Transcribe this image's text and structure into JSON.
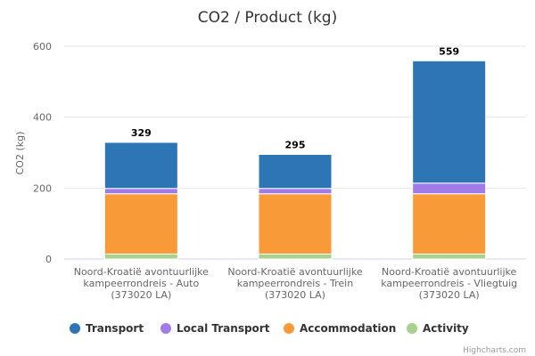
{
  "chart_data": {
    "type": "bar",
    "stacked": true,
    "title": "CO2 / Product (kg)",
    "xlabel": "",
    "ylabel": "CO2 (kg)",
    "ylim": [
      0,
      600
    ],
    "yticks": [
      0,
      200,
      400,
      600
    ],
    "grid": true,
    "legend_position": "bottom",
    "categories": [
      [
        "Noord-Kroatië avontuurlijke",
        "kampeerrondreis - Auto",
        "(373020 LA)"
      ],
      [
        "Noord-Kroatië avontuurlijke",
        "kampeerrondreis - Trein",
        "(373020 LA)"
      ],
      [
        "Noord-Kroatië avontuurlijke",
        "kampeerrondreis - Vliegtuig",
        "(373020 LA)"
      ]
    ],
    "series": [
      {
        "name": "Activity",
        "color": "#a9d18e",
        "values": [
          14,
          14,
          14
        ]
      },
      {
        "name": "Accommodation",
        "color": "#f99a38",
        "values": [
          170,
          170,
          170
        ]
      },
      {
        "name": "Local Transport",
        "color": "#a07ce9",
        "values": [
          15,
          15,
          30
        ]
      },
      {
        "name": "Transport",
        "color": "#2e75b6",
        "values": [
          130,
          96,
          345
        ]
      }
    ],
    "totals": [
      329,
      295,
      559
    ],
    "legend_order": [
      "Transport",
      "Local Transport",
      "Accommodation",
      "Activity"
    ],
    "credits": "Highcharts.com"
  }
}
